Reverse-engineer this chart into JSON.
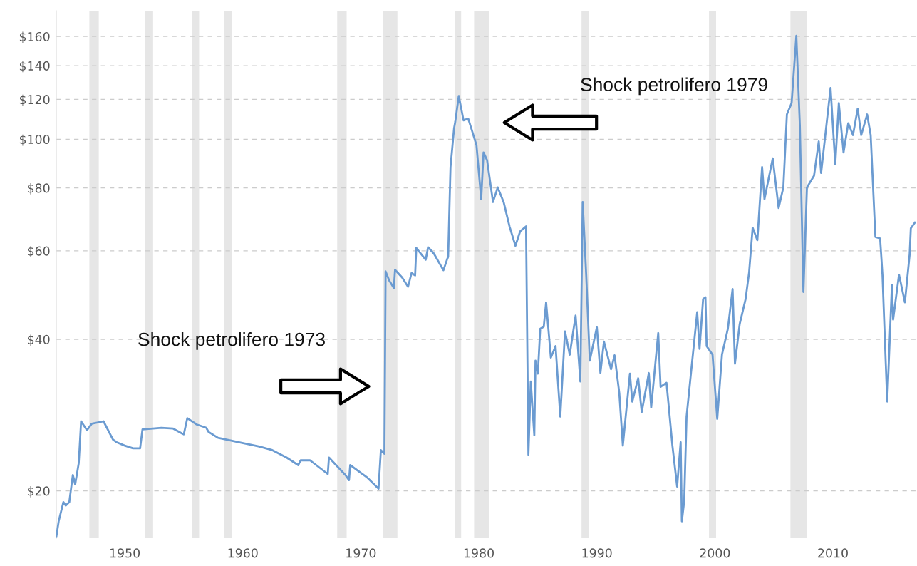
{
  "chart_data": {
    "type": "line",
    "log": "y",
    "xlim": [
      1944.2,
      2017.0
    ],
    "ylim": [
      16.1,
      180
    ],
    "xticks": [
      1950,
      1960,
      1970,
      1980,
      1990,
      2000,
      2010
    ],
    "yticks": [
      {
        "value": 20,
        "label": "$20"
      },
      {
        "value": 40,
        "label": "$40"
      },
      {
        "value": 60,
        "label": "$60"
      },
      {
        "value": 80,
        "label": "$80"
      },
      {
        "value": 100,
        "label": "$100"
      },
      {
        "value": 120,
        "label": "$120"
      },
      {
        "value": 140,
        "label": "$140"
      },
      {
        "value": 160,
        "label": "$160"
      }
    ],
    "grid": "y",
    "series": [
      {
        "color": "#6b9bd1",
        "x": [
          1944.2,
          1944.4,
          1944.8,
          1945.0,
          1945.3,
          1945.6,
          1945.8,
          1946.1,
          1946.3,
          1946.8,
          1947.2,
          1948.2,
          1949.0,
          1949.3,
          1950.0,
          1950.7,
          1951.3,
          1951.5,
          1953.1,
          1954.1,
          1955.0,
          1955.3,
          1956.1,
          1956.9,
          1957.1,
          1957.9,
          1959.6,
          1961.4,
          1962.5,
          1963.7,
          1964.7,
          1964.9,
          1965.7,
          1967.2,
          1967.3,
          1968.7,
          1969.0,
          1969.1,
          1970.5,
          1971.5,
          1971.7,
          1972.0,
          1972.1,
          1972.4,
          1972.8,
          1972.9,
          1973.5,
          1974.0,
          1974.3,
          1974.6,
          1974.7,
          1975.5,
          1975.7,
          1976.2,
          1977.0,
          1977.3,
          1977.4,
          1977.6,
          1977.9,
          1978.0,
          1978.3,
          1978.7,
          1979.1,
          1979.4,
          1979.8,
          1980.2,
          1980.4,
          1980.7,
          1981.2,
          1981.6,
          1982.1,
          1982.6,
          1983.1,
          1983.5,
          1984.0,
          1984.2,
          1984.4,
          1984.7,
          1984.8,
          1985.0,
          1985.2,
          1985.5,
          1985.7,
          1986.1,
          1986.5,
          1986.9,
          1987.3,
          1987.7,
          1988.2,
          1988.6,
          1988.8,
          1989.1,
          1989.4,
          1990.0,
          1990.3,
          1990.6,
          1991.2,
          1991.5,
          1991.9,
          1992.2,
          1992.8,
          1993.0,
          1993.5,
          1993.8,
          1994.4,
          1994.6,
          1995.2,
          1995.4,
          1995.9,
          1996.4,
          1996.8,
          1997.1,
          1997.2,
          1997.4,
          1997.6,
          1997.9,
          1998.5,
          1998.7,
          1999.0,
          1999.2,
          1999.3,
          1999.8,
          2000.2,
          2000.6,
          2001.1,
          2001.5,
          2001.7,
          2002.1,
          2002.6,
          2002.9,
          2003.2,
          2003.6,
          2004.0,
          2004.2,
          2004.9,
          2005.4,
          2005.8,
          2006.1,
          2006.5,
          2006.9,
          2007.2,
          2007.5,
          2007.8,
          2008.4,
          2008.8,
          2009.0,
          2009.8,
          2010.2,
          2010.5,
          2010.9,
          2011.3,
          2011.7,
          2012.1,
          2012.4,
          2012.9,
          2013.2,
          2013.6,
          2014.0,
          2014.2,
          2014.6,
          2015.0,
          2015.1,
          2015.6,
          2016.1,
          2016.5,
          2016.6,
          2016.95
        ],
        "values": [
          16.2,
          17.4,
          19.0,
          18.7,
          19.0,
          21.5,
          20.6,
          22.7,
          27.5,
          26.4,
          27.2,
          27.5,
          25.3,
          25.0,
          24.6,
          24.3,
          24.3,
          26.5,
          26.7,
          26.6,
          25.9,
          27.9,
          27.1,
          26.7,
          26.2,
          25.5,
          25.0,
          24.5,
          24.1,
          23.3,
          22.5,
          23.0,
          23.0,
          21.6,
          23.3,
          21.5,
          21.0,
          22.5,
          21.3,
          20.2,
          24.1,
          23.7,
          54.6,
          52.4,
          50.6,
          55.0,
          53.1,
          50.9,
          54.2,
          53.6,
          60.8,
          57.6,
          61.0,
          59.2,
          54.9,
          57.6,
          58.4,
          88.0,
          105.1,
          108.2,
          121.9,
          109.0,
          109.9,
          104.4,
          97.3,
          76.0,
          94.1,
          90.8,
          75.0,
          80.2,
          75.0,
          67.1,
          61.4,
          65.6,
          67.1,
          23.6,
          33.0,
          25.8,
          36.3,
          34.2,
          42.0,
          42.4,
          47.4,
          36.8,
          38.8,
          28.1,
          41.5,
          37.3,
          44.6,
          33.0,
          75.0,
          53.5,
          36.3,
          42.3,
          34.3,
          39.6,
          34.9,
          37.2,
          31.3,
          24.6,
          34.2,
          30.1,
          33.5,
          28.7,
          34.3,
          29.3,
          41.2,
          32.2,
          32.8,
          24.6,
          20.4,
          25.0,
          17.4,
          19.1,
          28.1,
          33.0,
          45.3,
          38.3,
          48.1,
          48.5,
          38.8,
          37.3,
          27.8,
          37.3,
          42.0,
          50.4,
          35.8,
          42.9,
          48.1,
          54.4,
          66.7,
          63.0,
          88.0,
          76.0,
          91.6,
          73.0,
          80.2,
          112.0,
          118.0,
          160.5,
          106.3,
          49.7,
          80.2,
          84.6,
          99.0,
          85.7,
          126.4,
          89.2,
          118.0,
          94.1,
          107.6,
          101.9,
          115.0,
          101.9,
          112.0,
          101.9,
          63.9,
          63.5,
          53.7,
          30.1,
          51.4,
          43.8,
          53.8,
          47.4,
          59.0,
          66.5,
          68.3
        ]
      }
    ],
    "bands": [
      {
        "axis": "x",
        "from": 1947.0,
        "to": 1947.8,
        "color": "#e6e6e6"
      },
      {
        "axis": "x",
        "from": 1951.7,
        "to": 1952.4,
        "color": "#e6e6e6"
      },
      {
        "axis": "x",
        "from": 1955.7,
        "to": 1956.3,
        "color": "#e6e6e6"
      },
      {
        "axis": "x",
        "from": 1958.4,
        "to": 1959.1,
        "color": "#e6e6e6"
      },
      {
        "axis": "x",
        "from": 1968.0,
        "to": 1968.8,
        "color": "#e6e6e6"
      },
      {
        "axis": "x",
        "from": 1971.9,
        "to": 1973.1,
        "color": "#e6e6e6"
      },
      {
        "axis": "x",
        "from": 1978.0,
        "to": 1978.5,
        "color": "#e6e6e6"
      },
      {
        "axis": "x",
        "from": 1979.6,
        "to": 1980.9,
        "color": "#e6e6e6"
      },
      {
        "axis": "x",
        "from": 1988.7,
        "to": 1989.3,
        "color": "#e6e6e6"
      },
      {
        "axis": "x",
        "from": 1999.5,
        "to": 2000.1,
        "color": "#e6e6e6"
      },
      {
        "axis": "x",
        "from": 2006.4,
        "to": 2007.8,
        "color": "#e6e6e6"
      }
    ],
    "annotations": [
      "Shock petrolifero 1973",
      "Shock petrolifero 1979"
    ]
  }
}
